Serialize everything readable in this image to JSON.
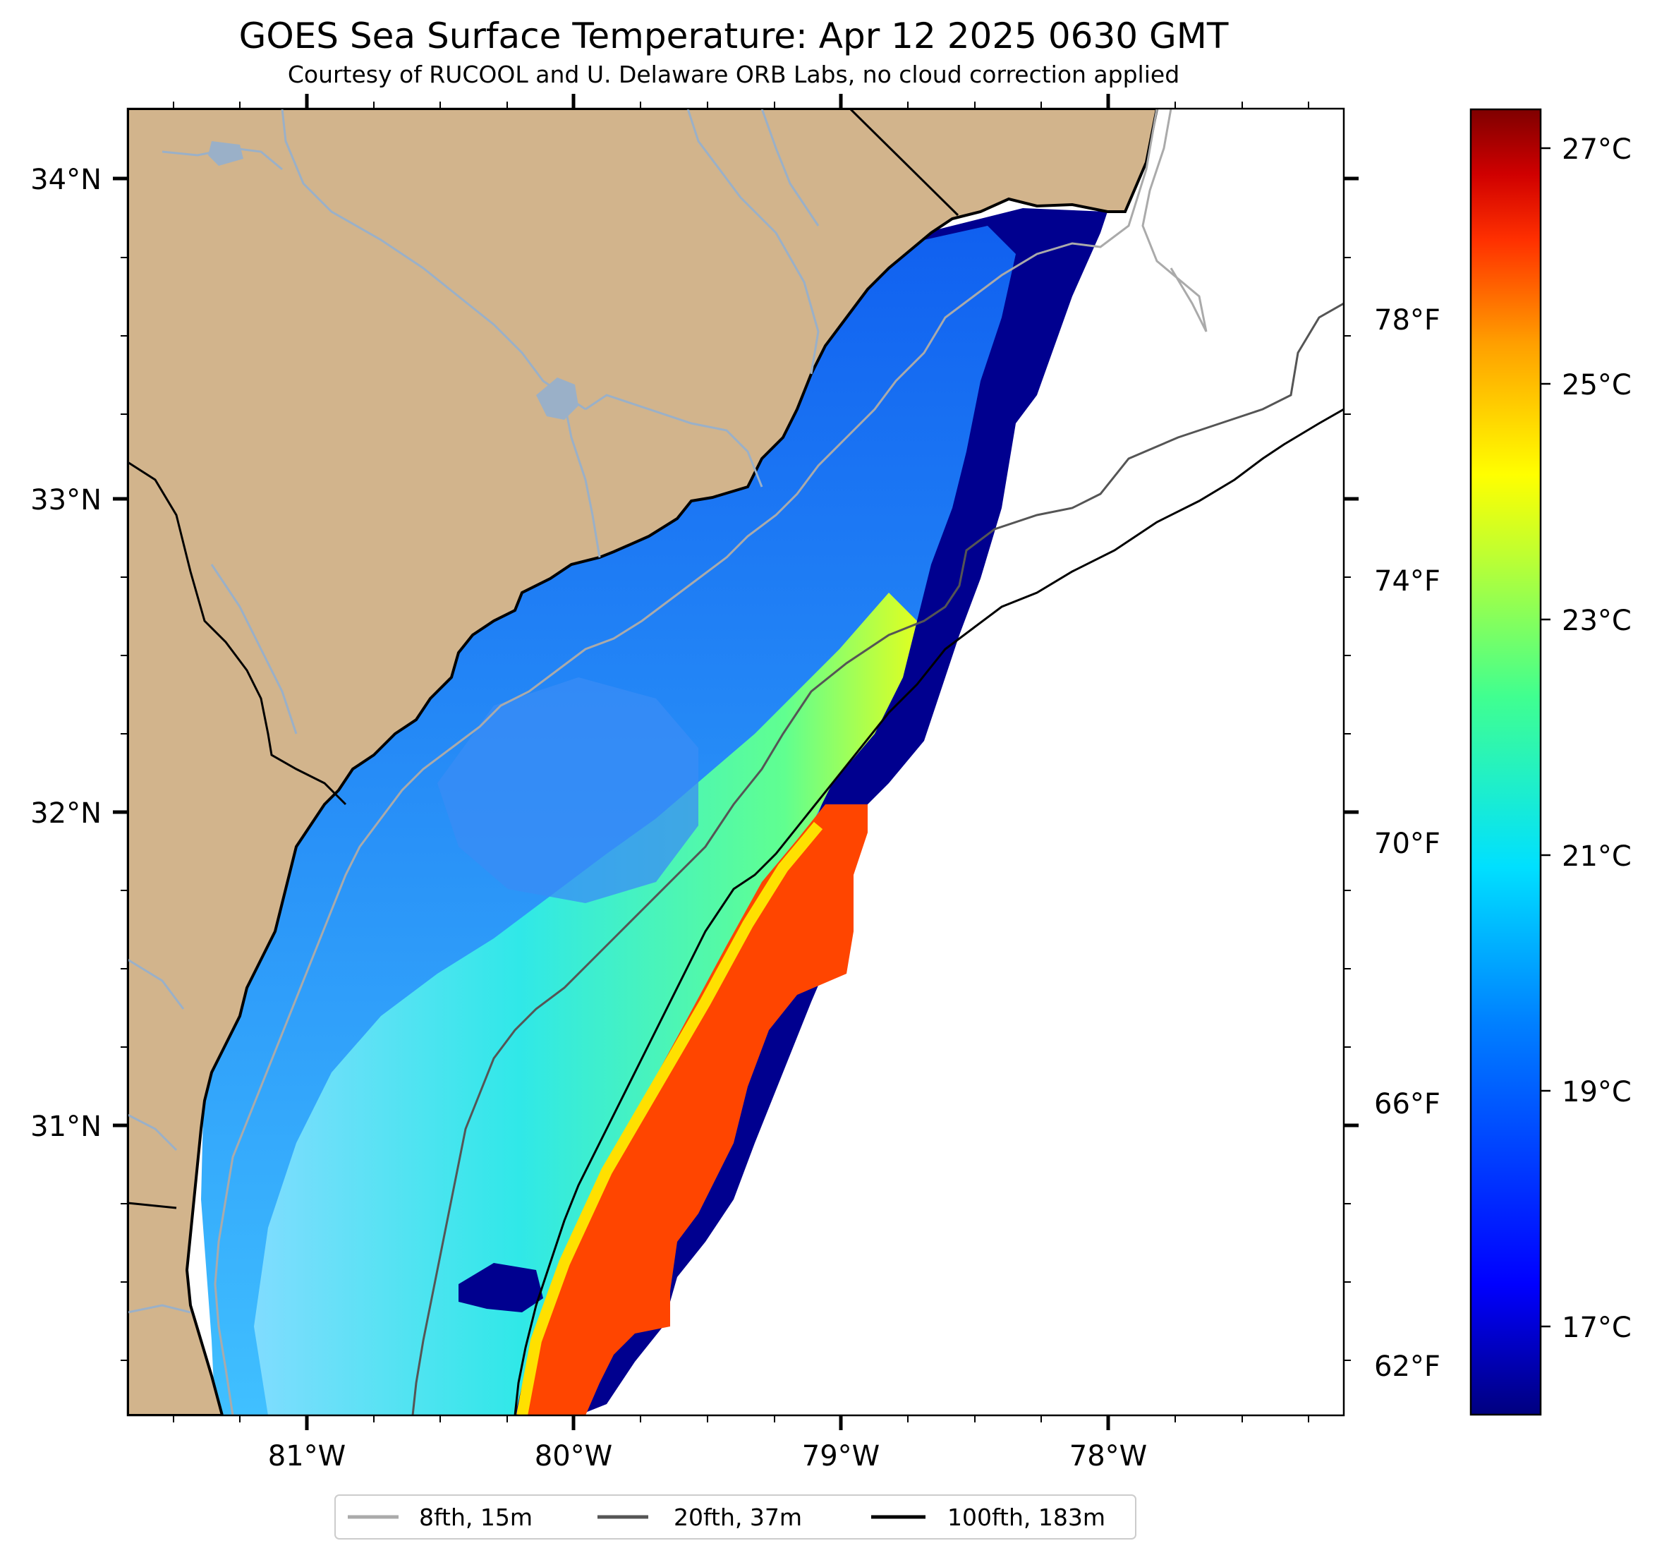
{
  "title": "GOES Sea Surface Temperature: Apr 12 2025 0630 GMT",
  "subtitle": "Courtesy of RUCOOL and U. Delaware ORB Labs, no cloud correction applied",
  "map": {
    "latitude_labels": [
      "34°N",
      "33°N",
      "32°N",
      "31°N"
    ],
    "longitude_labels": [
      "81°W",
      "80°W",
      "79°W",
      "78°W"
    ],
    "fahrenheit_labels": [
      "78°F",
      "74°F",
      "70°F",
      "66°F",
      "62°F"
    ]
  },
  "colorbar": {
    "labels": [
      "27°C",
      "25°C",
      "23°C",
      "21°C",
      "19°C",
      "17°C"
    ],
    "colors": [
      "#00007f",
      "#0000ff",
      "#0080ff",
      "#00e0ff",
      "#40ff90",
      "#c0ff30",
      "#ffff00",
      "#ffa000",
      "#ff3000",
      "#d00000",
      "#7f0000"
    ]
  },
  "legend": {
    "items": [
      {
        "label": "8fth, 15m",
        "color": "#aaaaaa"
      },
      {
        "label": "20fth, 37m",
        "color": "#555555"
      },
      {
        "label": "100fth, 183m",
        "color": "#000000"
      }
    ]
  },
  "colors": {
    "land": "#d2b48c",
    "rivers": "#9ab0c8",
    "ocean_nodata": "#ffffff"
  }
}
